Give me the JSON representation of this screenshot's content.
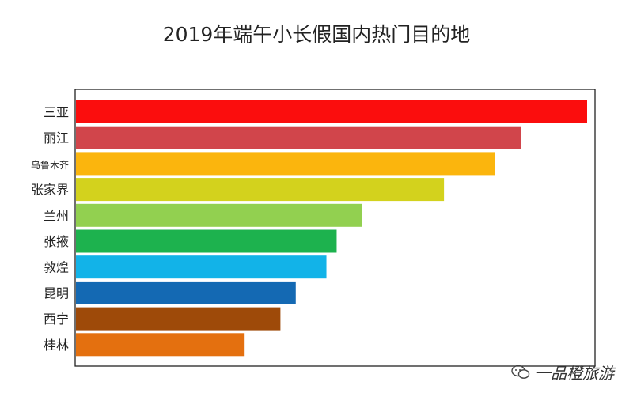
{
  "chart_data": {
    "type": "bar",
    "orientation": "horizontal",
    "title": "2019年端午小长假国内热门目的地",
    "xlabel": "",
    "ylabel": "",
    "grid": false,
    "categories": [
      "三亚",
      "丽江",
      "乌鲁木齐",
      "张家界",
      "兰州",
      "张掖",
      "敦煌",
      "昆明",
      "西宁",
      "桂林"
    ],
    "values": [
      100,
      87,
      82,
      72,
      56,
      51,
      49,
      43,
      40,
      33
    ],
    "colors": [
      "#fb0d0d",
      "#d1454b",
      "#fbb50d",
      "#d3d21d",
      "#92d050",
      "#1db24e",
      "#12b3e8",
      "#1469b3",
      "#9e4a09",
      "#e4700f"
    ],
    "xlim": [
      0,
      100
    ]
  },
  "watermark": {
    "icon": "wechat-icon",
    "text": "一品橙旅游"
  }
}
